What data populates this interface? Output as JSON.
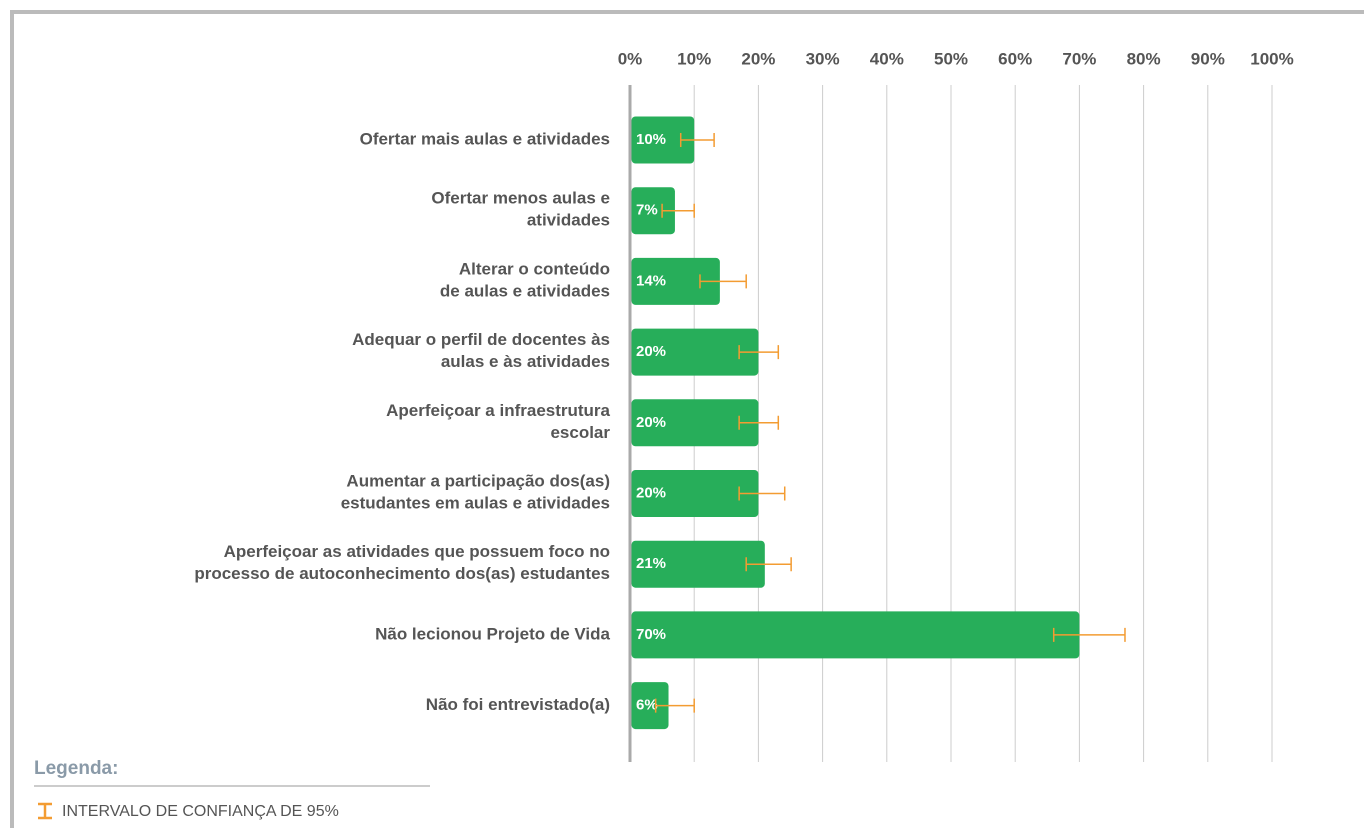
{
  "chart_data": {
    "type": "bar",
    "orientation": "horizontal",
    "categories": [
      "Ofertar mais aulas e atividades",
      "Ofertar menos aulas e\natividades",
      "Alterar o conteúdo\nde aulas e atividades",
      "Adequar o perfil de docentes às\naulas e às atividades",
      "Aperfeiçoar a infraestrutura\nescolar",
      "Aumentar a participação dos(as)\nestudantes em aulas e atividades",
      "Aperfeiçoar as atividades que possuem foco no\nprocesso de autoconhecimento dos(as) estudantes",
      "Não lecionou Projeto de Vida",
      "Não foi entrevistado(a)"
    ],
    "values": [
      10,
      7,
      14,
      20,
      20,
      20,
      21,
      70,
      6
    ],
    "value_labels": [
      "10%",
      "7%",
      "14%",
      "20%",
      "20%",
      "20%",
      "21%",
      "70%",
      "6%"
    ],
    "ci_low": [
      7.9,
      5.0,
      10.9,
      17.0,
      17.0,
      17.0,
      18.1,
      66.0,
      4.0
    ],
    "ci_high": [
      13.1,
      10.0,
      18.1,
      23.1,
      23.1,
      24.1,
      25.1,
      77.1,
      10.0
    ],
    "color": "#27ae5a",
    "error_color": "#f39c32",
    "xlim": [
      0,
      100
    ],
    "xticks": [
      {
        "value": 0,
        "label": "0%"
      },
      {
        "value": 10,
        "label": "10%"
      },
      {
        "value": 20,
        "label": "20%"
      },
      {
        "value": 30,
        "label": "30%"
      },
      {
        "value": 40,
        "label": "40%"
      },
      {
        "value": 50,
        "label": "50%"
      },
      {
        "value": 60,
        "label": "60%"
      },
      {
        "value": 70,
        "label": "70%"
      },
      {
        "value": 80,
        "label": "80%"
      },
      {
        "value": 90,
        "label": "90%"
      },
      {
        "value": 100,
        "label": "100%"
      }
    ],
    "grid": true,
    "legend_title": "Legenda:",
    "legend_item": "INTERVALO DE CONFIANÇA DE 95%"
  }
}
